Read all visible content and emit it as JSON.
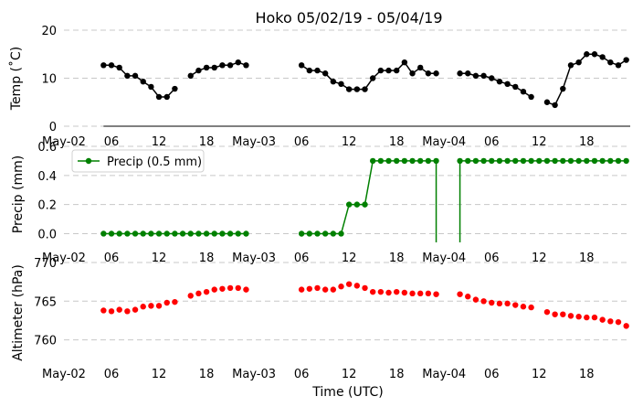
{
  "chart_data": {
    "title": "Hoko 05/02/19 - 05/04/19",
    "xlabel": "Time (UTC)",
    "x_ticks": [
      {
        "h": 0,
        "label": "May-02"
      },
      {
        "h": 6,
        "label": "06"
      },
      {
        "h": 12,
        "label": "12"
      },
      {
        "h": 18,
        "label": "18"
      },
      {
        "h": 24,
        "label": "May-03"
      },
      {
        "h": 30,
        "label": "06"
      },
      {
        "h": 36,
        "label": "12"
      },
      {
        "h": 42,
        "label": "18"
      },
      {
        "h": 48,
        "label": "May-04"
      },
      {
        "h": 54,
        "label": "06"
      },
      {
        "h": 60,
        "label": "12"
      },
      {
        "h": 66,
        "label": "18"
      }
    ],
    "xlim": [
      0,
      71.5
    ],
    "panels": [
      {
        "id": "temp",
        "type": "line",
        "ylabel": "Temp ($^\\circ$C)",
        "ylabel_display": "Temp (˚C)",
        "ylim": [
          0,
          20
        ],
        "yticks": [
          0,
          10,
          20
        ],
        "ytick_labels": [
          "0",
          "10",
          "20"
        ],
        "grid": true,
        "color": "#000000",
        "series": [
          {
            "x": [
              5,
              6,
              7,
              8,
              9,
              10,
              11,
              12,
              13,
              14
            ],
            "y": [
              12.7,
              12.7,
              12.2,
              10.5,
              10.5,
              9.3,
              8.2,
              6.1,
              6.1,
              7.8
            ]
          },
          {
            "x": [
              16,
              17,
              18,
              19,
              20,
              21,
              22,
              23
            ],
            "y": [
              10.5,
              11.6,
              12.2,
              12.2,
              12.7,
              12.7,
              13.3,
              12.7
            ]
          },
          {
            "x": [
              30,
              31,
              32,
              33,
              34,
              35,
              36,
              37,
              38,
              39,
              40,
              41,
              42,
              43,
              44,
              45,
              46,
              47
            ],
            "y": [
              12.7,
              11.6,
              11.6,
              11.0,
              9.3,
              8.8,
              7.7,
              7.7,
              7.7,
              10.0,
              11.6,
              11.6,
              11.6,
              13.3,
              11.0,
              12.2,
              11.0,
              11.0
            ]
          },
          {
            "x": [
              50,
              51,
              52,
              53,
              54,
              55,
              56,
              57,
              58,
              59
            ],
            "y": [
              11.0,
              11.0,
              10.5,
              10.5,
              10.0,
              9.3,
              8.8,
              8.2,
              7.2,
              6.1
            ]
          },
          {
            "x": [
              61,
              62,
              63,
              64,
              65,
              66,
              67,
              68,
              69,
              70,
              71
            ],
            "y": [
              5.0,
              4.4,
              7.8,
              12.7,
              13.3,
              15.0,
              15.0,
              14.4,
              13.3,
              12.7,
              13.8
            ]
          }
        ]
      },
      {
        "id": "precip",
        "type": "line",
        "ylabel": "Precip (mm)",
        "ylim": [
          -0.06,
          0.6
        ],
        "yticks": [
          0.0,
          0.2,
          0.4,
          0.6
        ],
        "ytick_labels": [
          "0.0",
          "0.2",
          "0.4",
          "0.6"
        ],
        "grid": true,
        "color": "#008000",
        "legend": {
          "label": "Precip (0.5 mm)",
          "placement": "top-left"
        },
        "series": [
          {
            "x": [
              5,
              6,
              7,
              8,
              9,
              10,
              11,
              12,
              13,
              14,
              15,
              16,
              17,
              18,
              19,
              20,
              21,
              22,
              23
            ],
            "y": [
              0,
              0,
              0,
              0,
              0,
              0,
              0,
              0,
              0,
              0,
              0,
              0,
              0,
              0,
              0,
              0,
              0,
              0,
              0
            ]
          },
          {
            "x": [
              30,
              31,
              32,
              33,
              34,
              35,
              36,
              37,
              38,
              39,
              40,
              41,
              42,
              43,
              44,
              45,
              46,
              47
            ],
            "y": [
              0,
              0,
              0,
              0,
              0,
              0,
              0.2,
              0.2,
              0.2,
              0.5,
              0.5,
              0.5,
              0.5,
              0.5,
              0.5,
              0.5,
              0.5,
              0.5
            ]
          },
          {
            "x": [
              50,
              51,
              52,
              53,
              54,
              55,
              56,
              57,
              58,
              59,
              60,
              61,
              62,
              63,
              64,
              65,
              66,
              67,
              68,
              69,
              70,
              71
            ],
            "y": [
              0.5,
              0.5,
              0.5,
              0.5,
              0.5,
              0.5,
              0.5,
              0.5,
              0.5,
              0.5,
              0.5,
              0.5,
              0.5,
              0.5,
              0.5,
              0.5,
              0.5,
              0.5,
              0.5,
              0.5,
              0.5,
              0.5
            ]
          }
        ],
        "drops": [
          {
            "x": 23,
            "from": 0,
            "to": -0.02
          },
          {
            "x": 30,
            "from": 0,
            "to": -0.02
          },
          {
            "x": 47,
            "from": 0.5,
            "to": -0.06
          },
          {
            "x": 50,
            "from": 0.5,
            "to": -0.06
          }
        ]
      },
      {
        "id": "altimeter",
        "type": "scatter",
        "ylabel": "Altimeter (hPa)",
        "ylim": [
          757,
          770
        ],
        "yticks": [
          760,
          765,
          770
        ],
        "ytick_labels": [
          "760",
          "765",
          "770"
        ],
        "grid": true,
        "color": "#ff0000",
        "series": [
          {
            "x": [
              5,
              6,
              7,
              8,
              9,
              10,
              11,
              12,
              13,
              14
            ],
            "y": [
              763.8,
              763.7,
              763.9,
              763.7,
              763.9,
              764.3,
              764.4,
              764.4,
              764.8,
              764.9
            ]
          },
          {
            "x": [
              16,
              17,
              18,
              19,
              20,
              21,
              22,
              23
            ],
            "y": [
              765.7,
              766.0,
              766.2,
              766.5,
              766.6,
              766.7,
              766.7,
              766.5
            ]
          },
          {
            "x": [
              30,
              31,
              32,
              33,
              34,
              35,
              36,
              37,
              38,
              39,
              40,
              41,
              42,
              43,
              44,
              45,
              46,
              47
            ],
            "y": [
              766.5,
              766.6,
              766.7,
              766.5,
              766.5,
              766.9,
              767.2,
              767.0,
              766.7,
              766.2,
              766.2,
              766.1,
              766.2,
              766.1,
              766.0,
              766.0,
              766.0,
              765.9
            ]
          },
          {
            "x": [
              50,
              51,
              52,
              53,
              54,
              55,
              56,
              57,
              58,
              59
            ],
            "y": [
              765.9,
              765.6,
              765.2,
              765.0,
              764.8,
              764.7,
              764.7,
              764.5,
              764.3,
              764.2
            ]
          },
          {
            "x": [
              61,
              62,
              63,
              64,
              65,
              66,
              67,
              68,
              69,
              70,
              71
            ],
            "y": [
              763.6,
              763.3,
              763.3,
              763.1,
              763.0,
              762.9,
              762.9,
              762.6,
              762.4,
              762.3,
              761.8
            ]
          }
        ]
      }
    ]
  }
}
